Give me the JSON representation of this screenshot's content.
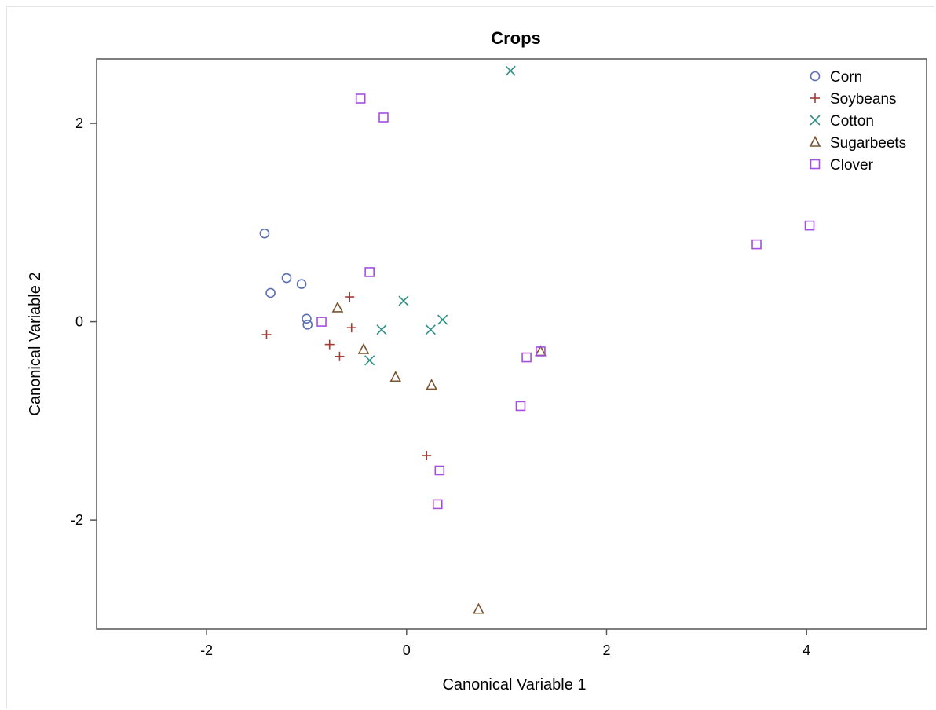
{
  "chart_data": {
    "type": "scatter",
    "title": "Crops",
    "xlabel": "Canonical Variable 1",
    "ylabel": "Canonical Variable 2",
    "xlim": [
      -3.1,
      5.2
    ],
    "ylim": [
      -3.1,
      2.65
    ],
    "xticks": [
      -2,
      0,
      2,
      4
    ],
    "yticks": [
      -2,
      0,
      2
    ],
    "grid": false,
    "legend_position": "top-right",
    "series": [
      {
        "name": "Corn",
        "marker": "circle",
        "color": "#5b6fb5",
        "points": [
          [
            -1.42,
            0.89
          ],
          [
            -1.2,
            0.44
          ],
          [
            -1.05,
            0.38
          ],
          [
            -1.36,
            0.29
          ],
          [
            -1.0,
            0.03
          ],
          [
            -0.99,
            -0.03
          ]
        ]
      },
      {
        "name": "Soybeans",
        "marker": "plus",
        "color": "#a23b32",
        "points": [
          [
            -1.4,
            -0.13
          ],
          [
            -0.77,
            -0.23
          ],
          [
            -0.67,
            -0.35
          ],
          [
            -0.57,
            0.25
          ],
          [
            -0.55,
            -0.06
          ],
          [
            0.2,
            -1.35
          ]
        ]
      },
      {
        "name": "Cotton",
        "marker": "x",
        "color": "#2f8f87",
        "points": [
          [
            1.04,
            2.53
          ],
          [
            -0.03,
            0.21
          ],
          [
            0.36,
            0.02
          ],
          [
            0.24,
            -0.08
          ],
          [
            -0.25,
            -0.08
          ],
          [
            -0.37,
            -0.39
          ]
        ]
      },
      {
        "name": "Sugarbeets",
        "marker": "triangle",
        "color": "#7a5430",
        "points": [
          [
            -0.69,
            0.14
          ],
          [
            -0.43,
            -0.28
          ],
          [
            -0.11,
            -0.56
          ],
          [
            0.25,
            -0.64
          ],
          [
            1.34,
            -0.3
          ],
          [
            0.72,
            -2.9
          ]
        ]
      },
      {
        "name": "Clover",
        "marker": "square",
        "color": "#a54ee0",
        "points": [
          [
            -0.46,
            2.25
          ],
          [
            -0.23,
            2.06
          ],
          [
            -0.37,
            0.5
          ],
          [
            -0.85,
            0.0
          ],
          [
            1.34,
            -0.3
          ],
          [
            1.2,
            -0.36
          ],
          [
            1.14,
            -0.85
          ],
          [
            0.33,
            -1.5
          ],
          [
            0.31,
            -1.84
          ],
          [
            3.5,
            0.78
          ],
          [
            4.03,
            0.97
          ]
        ]
      }
    ]
  }
}
